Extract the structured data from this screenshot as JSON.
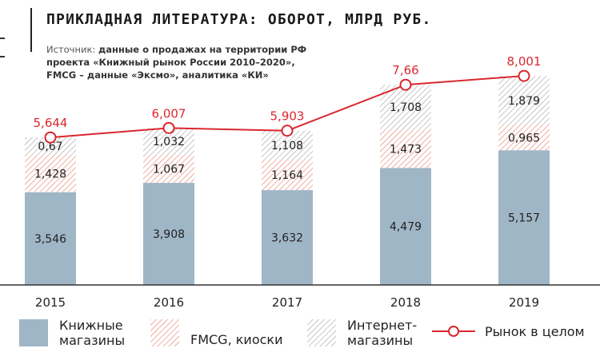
{
  "title": "ПРИКЛАДНАЯ ЛИТЕРАТУРА: ОБОРОТ, МЛРД РУБ.",
  "source": {
    "label": "Источник:",
    "line1": "данные о продажах на территории РФ",
    "line2": "проекта «Книжный рынок России 2010–2020»,",
    "line3": "FMCG – данные «Эксмо», аналитика «КИ»"
  },
  "colors": {
    "bookstores": "#9fb6c6",
    "fmcg_hatch": "#e8846d",
    "internet_hatch": "#9a9a9a",
    "total_line": "#d9272e",
    "axis": "#333333"
  },
  "chart_data": {
    "type": "bar",
    "stacked": true,
    "categories": [
      "2015",
      "2016",
      "2017",
      "2018",
      "2019"
    ],
    "series": [
      {
        "name": "Книжные магазины",
        "values": [
          3.546,
          3.908,
          3.632,
          4.479,
          5.157
        ],
        "labels": [
          "3,546",
          "3,908",
          "3,632",
          "4,479",
          "5,157"
        ]
      },
      {
        "name": "FMCG, киоски",
        "values": [
          1.428,
          1.067,
          1.164,
          1.473,
          0.965
        ],
        "labels": [
          "1,428",
          "1,067",
          "1,164",
          "1,473",
          "0,965"
        ]
      },
      {
        "name": "Интернет-магазины",
        "values": [
          0.67,
          1.032,
          1.108,
          1.708,
          1.879
        ],
        "labels": [
          "0,67",
          "1,032",
          "1,108",
          "1,708",
          "1,879"
        ]
      }
    ],
    "line": {
      "name": "Рынок в целом",
      "values": [
        5.644,
        6.007,
        5.903,
        7.66,
        8.001
      ],
      "labels": [
        "5,644",
        "6,007",
        "5,903",
        "7,66",
        "8,001"
      ]
    },
    "ylim": [
      0,
      8.4
    ],
    "grid": false,
    "legend_position": "bottom"
  },
  "legend": {
    "bookstores_l1": "Книжные",
    "bookstores_l2": "магазины",
    "fmcg": "FMCG, киоски",
    "internet_l1": "Интернет-",
    "internet_l2": "магазины",
    "total": "Рынок в целом"
  }
}
